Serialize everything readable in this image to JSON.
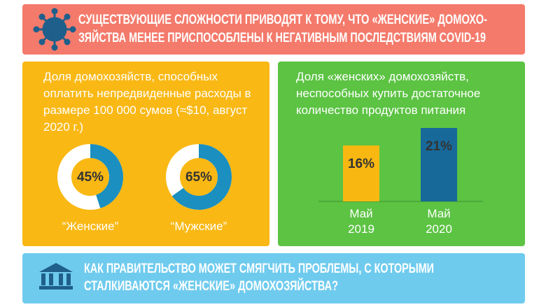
{
  "header": {
    "title_lines": [
      "СУЩЕСТВУЮЩИЕ СЛОЖНОСТИ ПРИВОДЯТ К ТОМУ, ЧТО «ЖЕНСКИЕ» ДОМОХО-",
      "ЗЯЙСТВА МЕНЕЕ ПРИСПОСОБЛЕНЫ К НЕГАТИВНЫМ ПОСЛЕДСТВИЯМ COVID-19"
    ]
  },
  "chart_data": [
    {
      "type": "pie",
      "title": "Доля домохозяйств, способных оплатить непредвиденные расходы в размере 100 000 сумов (≈$10, август 2020 г.)",
      "categories": [
        "“Женские”",
        "“Мужские”"
      ],
      "values": [
        45,
        65
      ],
      "value_labels": [
        "45%",
        "65%"
      ],
      "color": "#1a8fc0"
    },
    {
      "type": "bar",
      "title": "Доля «женских» домохозяйств, неспособных купить достаточное количество продуктов питания",
      "categories": [
        "Май 2019",
        "Май 2020"
      ],
      "values": [
        16,
        21
      ],
      "value_labels": [
        "16%",
        "21%"
      ],
      "colors": [
        "#f9b811",
        "#17699a"
      ]
    }
  ],
  "footer": {
    "question_lines": [
      "КАК ПРАВИТЕЛЬСТВО МОЖЕТ СМЯГЧИТЬ ПРОБЛЕМЫ, С КОТОРЫМИ",
      "СТАЛКИВАЮТСЯ «ЖЕНСКИЕ» ДОМОХОЗЯЙСТВА?"
    ]
  }
}
